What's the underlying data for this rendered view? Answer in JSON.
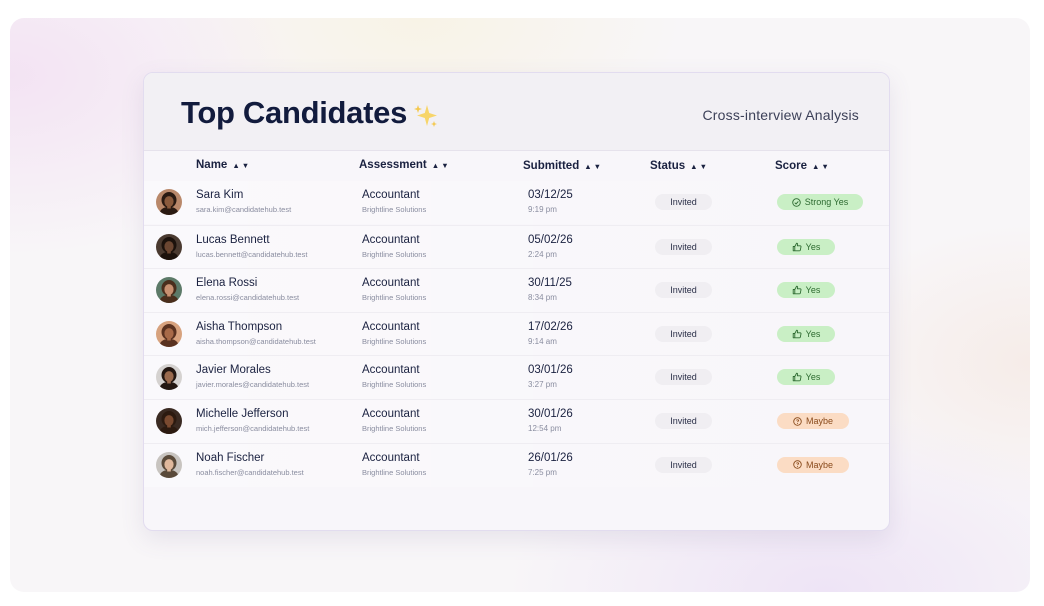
{
  "header": {
    "title": "Top Candidates",
    "subtitle": "Cross-interview Analysis"
  },
  "columns": {
    "name": "Name",
    "assessment": "Assessment",
    "submitted": "Submitted",
    "status": "Status",
    "score": "Score",
    "sort_glyph": "▲▼"
  },
  "rows": [
    {
      "name": "Sara Kim",
      "email": "sara.kim@candidatehub.test",
      "role": "Accountant",
      "company": "Brightline Solutions",
      "date": "03/12/25",
      "time": "9:19 pm",
      "status": "Invited",
      "score": "Strong Yes",
      "score_type": "strong",
      "avatar_skin": "#8a5a3c",
      "avatar_hair": "#2a1a12",
      "avatar_bg": "#b9886a"
    },
    {
      "name": "Lucas Bennett",
      "email": "lucas.bennett@candidatehub.test",
      "role": "Accountant",
      "company": "Brightline Solutions",
      "date": "05/02/26",
      "time": "2:24 pm",
      "status": "Invited",
      "score": "Yes",
      "score_type": "yes",
      "avatar_skin": "#6b4631",
      "avatar_hair": "#1c120c",
      "avatar_bg": "#4a3a30"
    },
    {
      "name": "Elena Rossi",
      "email": "elena.rossi@candidatehub.test",
      "role": "Accountant",
      "company": "Brightline Solutions",
      "date": "30/11/25",
      "time": "8:34 pm",
      "status": "Invited",
      "score": "Yes",
      "score_type": "yes",
      "avatar_skin": "#c89070",
      "avatar_hair": "#4a2e1c",
      "avatar_bg": "#5c7a68"
    },
    {
      "name": "Aisha Thompson",
      "email": "aisha.thompson@candidatehub.test",
      "role": "Accountant",
      "company": "Brightline Solutions",
      "date": "17/02/26",
      "time": "9:14 am",
      "status": "Invited",
      "score": "Yes",
      "score_type": "yes",
      "avatar_skin": "#a86a48",
      "avatar_hair": "#5a3220",
      "avatar_bg": "#d7a27e"
    },
    {
      "name": "Javier Morales",
      "email": "javier.morales@candidatehub.test",
      "role": "Accountant",
      "company": "Brightline Solutions",
      "date": "03/01/26",
      "time": "3:27 pm",
      "status": "Invited",
      "score": "Yes",
      "score_type": "yes",
      "avatar_skin": "#9a6a4e",
      "avatar_hair": "#231712",
      "avatar_bg": "#d5d2d0"
    },
    {
      "name": "Michelle Jefferson",
      "email": "mich.jefferson@candidatehub.test",
      "role": "Accountant",
      "company": "Brightline Solutions",
      "date": "30/01/26",
      "time": "12:54 pm",
      "status": "Invited",
      "score": "Maybe",
      "score_type": "maybe",
      "avatar_skin": "#7a4a30",
      "avatar_hair": "#2c1a10",
      "avatar_bg": "#3a2a22"
    },
    {
      "name": "Noah Fischer",
      "email": "noah.fischer@candidatehub.test",
      "role": "Accountant",
      "company": "Brightline Solutions",
      "date": "26/01/26",
      "time": "7:25 pm",
      "status": "Invited",
      "score": "Maybe",
      "score_type": "maybe",
      "avatar_skin": "#e0b89c",
      "avatar_hair": "#5a4a3a",
      "avatar_bg": "#c8c4c0"
    }
  ]
}
